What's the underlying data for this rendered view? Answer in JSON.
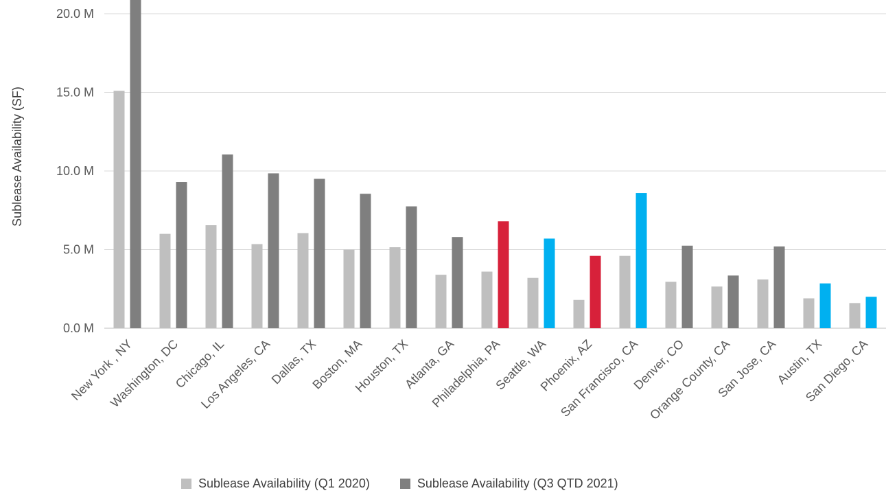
{
  "chart_data": {
    "type": "bar",
    "ylabel": "Sublease Availability (SF)",
    "xlabel": "",
    "ylim": [
      0,
      20
    ],
    "yticks": [
      0,
      5,
      10,
      15,
      20
    ],
    "ytick_labels": [
      "0.0 M",
      "5.0 M",
      "10.0 M",
      "15.0 M",
      "20.0 M"
    ],
    "grid": "horizontal",
    "legend_position": "bottom",
    "categories": [
      "New York , NY",
      "Washington, DC",
      "Chicago, IL",
      "Los Angeles, CA",
      "Dallas, TX",
      "Boston, MA",
      "Houston, TX",
      "Atlanta, GA",
      "Philadelphia, PA",
      "Seattle, WA",
      "Phoenix, AZ",
      "San Francisco, CA",
      "Denver, CO",
      "Orange County, CA",
      "San Jose, CA",
      "Austin, TX",
      "San Diego, CA"
    ],
    "series": [
      {
        "name": "Sublease Availability (Q1 2020)",
        "color": "#bfbfbf",
        "values": [
          15.1,
          6.0,
          6.55,
          5.35,
          6.05,
          5.0,
          5.15,
          3.4,
          3.6,
          3.2,
          1.8,
          4.6,
          2.95,
          2.65,
          3.1,
          1.9,
          1.6
        ]
      },
      {
        "name": "Sublease Availability (Q3 QTD 2021)",
        "color": "#7f7f7f",
        "values": [
          21.5,
          9.3,
          11.05,
          9.85,
          9.5,
          8.55,
          7.75,
          5.8,
          6.8,
          5.7,
          4.6,
          8.6,
          5.25,
          3.35,
          5.2,
          2.85,
          2.0
        ],
        "point_colors": [
          "#7f7f7f",
          "#7f7f7f",
          "#7f7f7f",
          "#7f7f7f",
          "#7f7f7f",
          "#7f7f7f",
          "#7f7f7f",
          "#7f7f7f",
          "#d7213a",
          "#00b0f0",
          "#d7213a",
          "#00b0f0",
          "#7f7f7f",
          "#7f7f7f",
          "#7f7f7f",
          "#00b0f0",
          "#00b0f0"
        ]
      }
    ]
  }
}
